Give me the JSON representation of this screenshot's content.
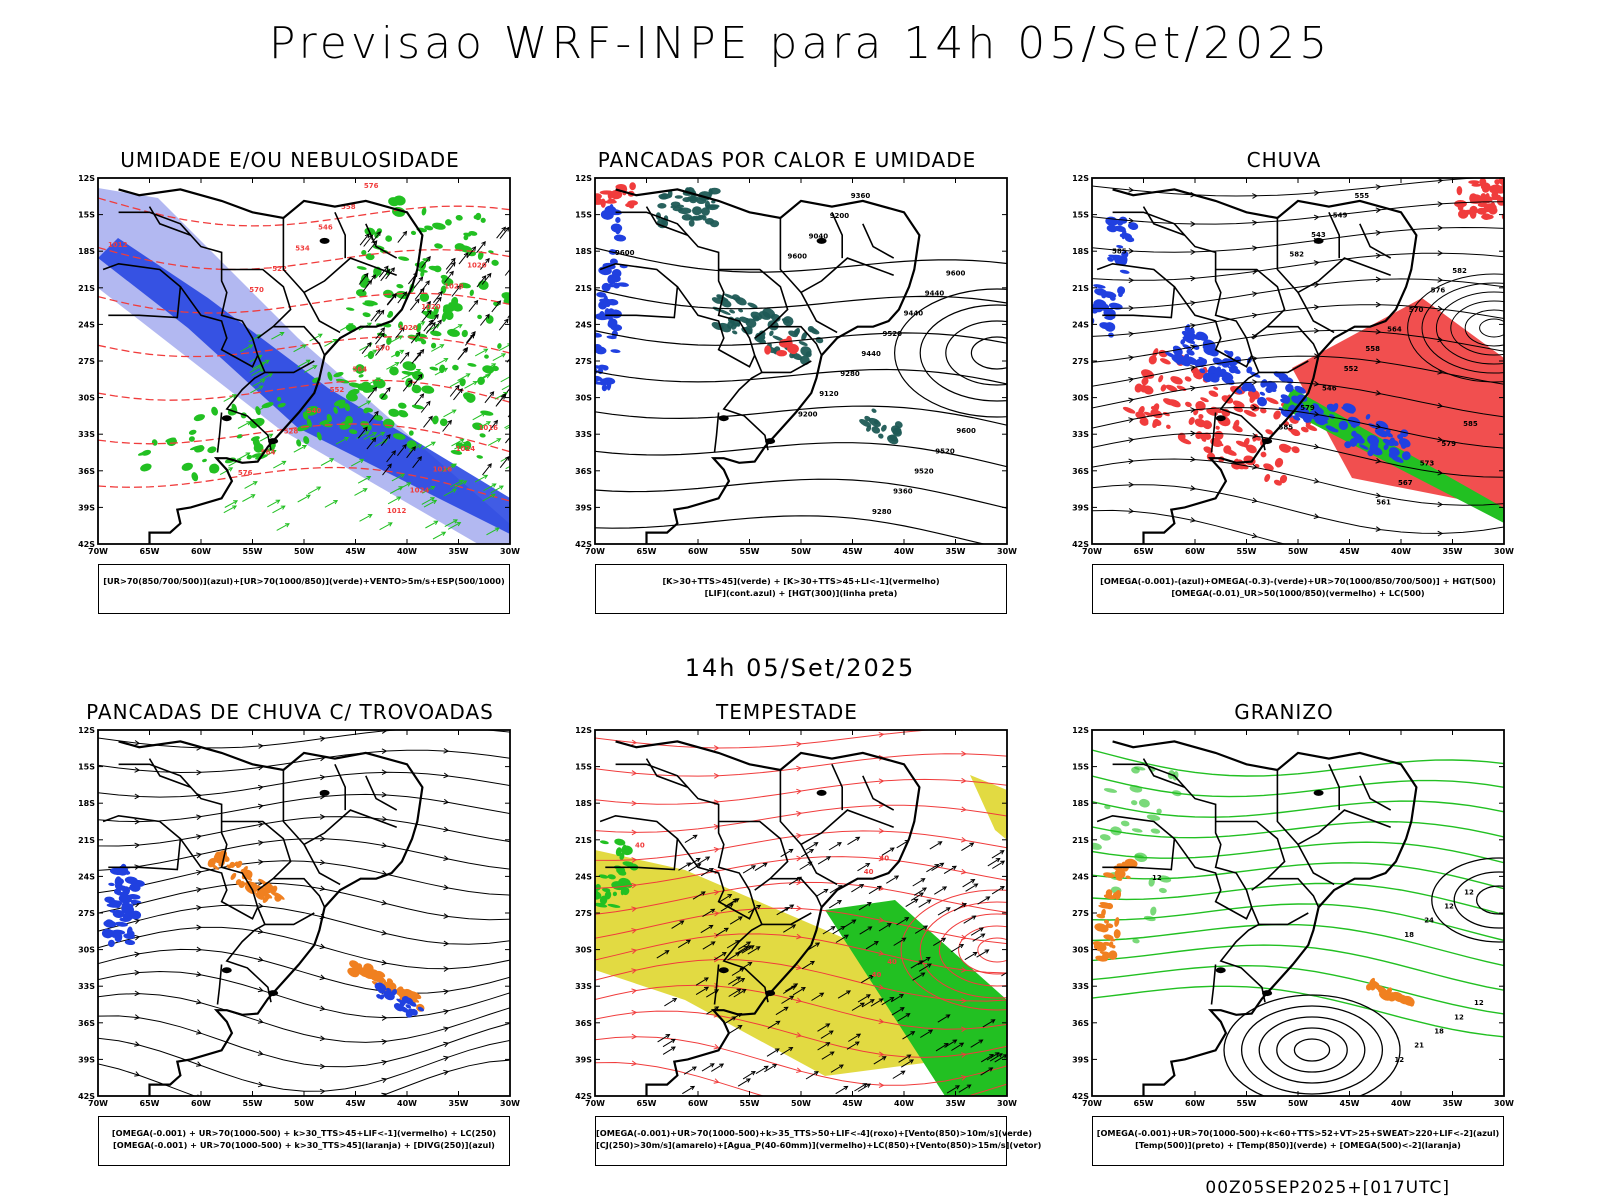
{
  "header": {
    "title": "Previsao WRF-INPE  para 14h 05/Set/2025",
    "mid_title": "14h 05/Set/2025",
    "footer_stamp": "00Z05SEP2025+[017UTC]"
  },
  "axes": {
    "lat_labels": [
      "12S",
      "15S",
      "18S",
      "21S",
      "24S",
      "27S",
      "30S",
      "33S",
      "36S",
      "39S",
      "42S"
    ],
    "lon_labels": [
      "70W",
      "65W",
      "60W",
      "55W",
      "50W",
      "45W",
      "40W",
      "35W",
      "30W"
    ]
  },
  "colors": {
    "blue": "#2040e0",
    "lightblue": "#aab0f0",
    "green": "#22c022",
    "red": "#f03c3c",
    "orange": "#f08020",
    "yellow": "#e0d838",
    "teal": "#1e5a55",
    "black": "#000000"
  },
  "panels": [
    {
      "id": "umidade",
      "title": "UMIDADE E/OU NEBULOSIDADE",
      "legend": [
        "[UR>70(850/700/500)](azul)+[UR>70(1000/850)](verde)+VENTO>5m/s+ESP(500/1000)"
      ],
      "contour_labels": [
        "1012",
        "1016",
        "1020",
        "1024",
        "1028",
        "1016",
        "1020",
        "1024",
        "1020",
        "1012",
        "570",
        "576",
        "564",
        "558",
        "552",
        "546",
        "540",
        "534",
        "528",
        "522",
        "564",
        "570",
        "576"
      ]
    },
    {
      "id": "pancadas-calor",
      "title": "PANCADAS POR CALOR E UMIDADE",
      "legend": [
        "[K>30+TTS>45](verde) + [K>30+TTS>45+LI<-1](vermelho)",
        "[LIF](cont.azul) + [HGT(300)](linha preta)"
      ],
      "contour_labels": [
        "9600",
        "9600",
        "9600",
        "9520",
        "9440",
        "9520",
        "9440",
        "9360",
        "9520",
        "9280",
        "9440",
        "9360",
        "9280",
        "9200",
        "9120",
        "9040",
        "9200",
        "9600"
      ]
    },
    {
      "id": "chuva",
      "title": "CHUVA",
      "legend": [
        "[OMEGA(-0.001)-(azul)+OMEGA(-0.3)-(verde)+UR>70(1000/850/700/500)] + HGT(500)",
        "[OMEGA(-0.01)_UR>50(1000/850)(vermelho) + LC(500)"
      ],
      "contour_labels": [
        "585",
        "585",
        "582",
        "579",
        "576",
        "573",
        "570",
        "567",
        "564",
        "561",
        "558",
        "555",
        "552",
        "549",
        "546",
        "543",
        "579",
        "582",
        "585"
      ]
    },
    {
      "id": "pancadas-trovoadas",
      "title": "PANCADAS DE CHUVA C/ TROVOADAS",
      "legend": [
        "[OMEGA(-0.001) + UR>70(1000-500) + k>30_TTS>45+LIF<-1](vermelho) + LC(250)",
        "[OMEGA(-0.001) + UR>70(1000-500) + k>30_TTS>45](laranja) + [DIVG(250)](azul)"
      ],
      "contour_labels": []
    },
    {
      "id": "tempestade",
      "title": "TEMPESTADE",
      "legend": [
        "[OMEGA(-0.001)+UR>70(1000-500)+k>35_TTS>50+LIF<-4](roxo)+[Vento(850)>10m/s](verde)",
        "[CJ(250)>30m/s](amarelo)+[Agua_P(40-60mm)](vermelho)+LC(850)+[Vento(850)>15m/s](vetor)"
      ],
      "contour_labels": [
        "40",
        "40",
        "40",
        "40",
        "40"
      ]
    },
    {
      "id": "granizo",
      "title": "GRANIZO",
      "legend": [
        "[OMEGA(-0.001)+UR>70(1000-500)+k<60+TTS>52+VT>25+SWEAT>220+LIF<-2](azul)",
        "[Temp(500)](preto) + [Temp(850)](verde) + [OMEGA(500)<-2](laranja)"
      ],
      "contour_labels": [
        "12",
        "12",
        "12",
        "12",
        "12",
        "18",
        "24",
        "21",
        "18",
        "12"
      ]
    }
  ]
}
